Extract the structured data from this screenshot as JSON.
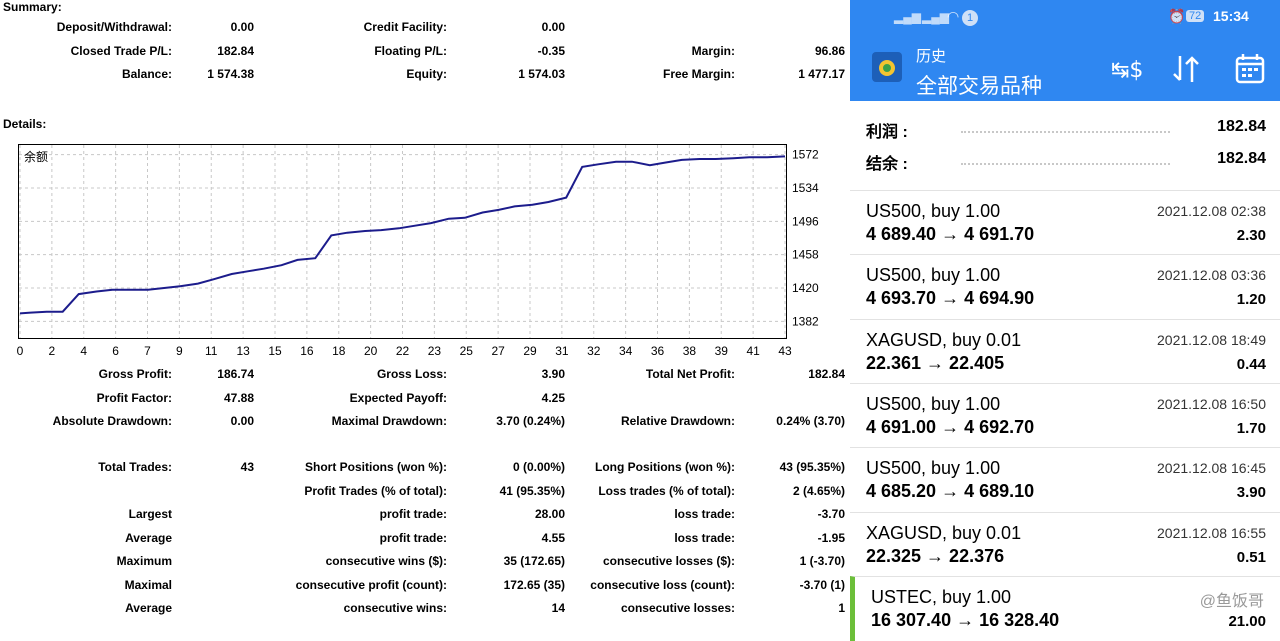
{
  "summary": {
    "title": "Summary:",
    "rows": [
      [
        {
          "l": "Deposit/Withdrawal:",
          "v": "0.00"
        },
        {
          "l": "Credit Facility:",
          "v": "0.00"
        },
        {
          "l": "",
          "v": ""
        }
      ],
      [
        {
          "l": "Closed Trade P/L:",
          "v": "182.84"
        },
        {
          "l": "Floating P/L:",
          "v": "-0.35"
        },
        {
          "l": "Margin:",
          "v": "96.86"
        }
      ],
      [
        {
          "l": "Balance:",
          "v": "1 574.38"
        },
        {
          "l": "Equity:",
          "v": "1 574.03"
        },
        {
          "l": "Free Margin:",
          "v": "1 477.17"
        }
      ]
    ]
  },
  "details": {
    "title": "Details:",
    "rows": [
      [
        {
          "l": "Gross Profit:",
          "v": "186.74"
        },
        {
          "l": "Gross Loss:",
          "v": "3.90"
        },
        {
          "l": "Total Net Profit:",
          "v": "182.84"
        }
      ],
      [
        {
          "l": "Profit Factor:",
          "v": "47.88"
        },
        {
          "l": "Expected Payoff:",
          "v": "4.25"
        },
        {
          "l": "",
          "v": ""
        }
      ],
      [
        {
          "l": "Absolute Drawdown:",
          "v": "0.00"
        },
        {
          "l": "Maximal Drawdown:",
          "v": "3.70 (0.24%)"
        },
        {
          "l": "Relative Drawdown:",
          "v": "0.24% (3.70)"
        }
      ]
    ],
    "rows2": [
      [
        {
          "l": "Total Trades:",
          "v": "43"
        },
        {
          "l": "Short Positions (won %):",
          "v": "0 (0.00%)"
        },
        {
          "l": "Long Positions (won %):",
          "v": "43 (95.35%)"
        }
      ],
      [
        {
          "l": "",
          "v": ""
        },
        {
          "l": "Profit Trades (% of total):",
          "v": "41 (95.35%)"
        },
        {
          "l": "Loss trades (% of total):",
          "v": "2 (4.65%)"
        }
      ],
      [
        {
          "l": "Largest",
          "v": ""
        },
        {
          "l": "profit trade:",
          "v": "28.00"
        },
        {
          "l": "loss trade:",
          "v": "-3.70"
        }
      ],
      [
        {
          "l": "Average",
          "v": ""
        },
        {
          "l": "profit trade:",
          "v": "4.55"
        },
        {
          "l": "loss trade:",
          "v": "-1.95"
        }
      ],
      [
        {
          "l": "Maximum",
          "v": ""
        },
        {
          "l": "consecutive wins ($):",
          "v": "35 (172.65)"
        },
        {
          "l": "consecutive losses ($):",
          "v": "1 (-3.70)"
        }
      ],
      [
        {
          "l": "Maximal",
          "v": ""
        },
        {
          "l": "consecutive profit (count):",
          "v": "172.65 (35)"
        },
        {
          "l": "consecutive loss (count):",
          "v": "-3.70 (1)"
        }
      ],
      [
        {
          "l": "Average",
          "v": ""
        },
        {
          "l": "consecutive wins:",
          "v": "14"
        },
        {
          "l": "consecutive losses:",
          "v": "1"
        }
      ]
    ]
  },
  "chart_data": {
    "type": "line",
    "title": "余额",
    "x_tick_labels": [
      "0",
      "2",
      "4",
      "6",
      "7",
      "9",
      "11",
      "13",
      "15",
      "16",
      "18",
      "20",
      "22",
      "23",
      "25",
      "27",
      "29",
      "31",
      "32",
      "34",
      "36",
      "38",
      "39",
      "41",
      "43"
    ],
    "y_ticks": [
      1382,
      1420,
      1458,
      1496,
      1534,
      1572
    ],
    "ylim": [
      1363,
      1583
    ],
    "xlim": [
      0,
      43
    ],
    "grid": true,
    "color": "#1c1c8c",
    "series": [
      {
        "values": [
          [
            0,
            1391
          ],
          [
            0.6,
            1392
          ],
          [
            1.5,
            1393
          ],
          [
            2.4,
            1393
          ],
          [
            3.3,
            1413
          ],
          [
            4.3,
            1416
          ],
          [
            5.2,
            1418
          ],
          [
            6.2,
            1418
          ],
          [
            7.2,
            1418
          ],
          [
            8.1,
            1420
          ],
          [
            9.0,
            1422
          ],
          [
            10.0,
            1425
          ],
          [
            10.9,
            1430
          ],
          [
            11.9,
            1436
          ],
          [
            12.8,
            1439
          ],
          [
            13.7,
            1442
          ],
          [
            14.7,
            1446
          ],
          [
            15.6,
            1452
          ],
          [
            16.6,
            1454
          ],
          [
            17.5,
            1480
          ],
          [
            18.4,
            1483
          ],
          [
            19.4,
            1485
          ],
          [
            20.3,
            1486
          ],
          [
            21.3,
            1488
          ],
          [
            22.2,
            1491
          ],
          [
            23.1,
            1494
          ],
          [
            24.1,
            1499
          ],
          [
            25.0,
            1500
          ],
          [
            26.0,
            1506
          ],
          [
            26.9,
            1509
          ],
          [
            27.8,
            1513
          ],
          [
            28.8,
            1515
          ],
          [
            29.7,
            1518
          ],
          [
            30.7,
            1523
          ],
          [
            31.6,
            1558
          ],
          [
            32.5,
            1561
          ],
          [
            33.5,
            1564
          ],
          [
            34.4,
            1564
          ],
          [
            35.4,
            1560
          ],
          [
            36.3,
            1563
          ],
          [
            37.2,
            1566
          ],
          [
            38.2,
            1567
          ],
          [
            39.1,
            1567
          ],
          [
            40.1,
            1568
          ],
          [
            41.0,
            1569
          ],
          [
            42.0,
            1569
          ],
          [
            43.0,
            1570
          ]
        ]
      }
    ]
  },
  "phone": {
    "status_battery": "72",
    "status_time": "15:34",
    "status_notif": "1",
    "title": "历史",
    "subtitle": "全部交易品种",
    "profit_label": "利润 :",
    "profit_value": "182.84",
    "balance_label": "结余 :",
    "balance_value": "182.84",
    "accent": "#2f87f1",
    "trades": [
      {
        "sym": "US500, buy 1.00",
        "prices": "4 689.40 → 4 691.70",
        "date": "2021.12.08 02:38",
        "profit": "2.30"
      },
      {
        "sym": "US500, buy 1.00",
        "prices": "4 693.70 → 4 694.90",
        "date": "2021.12.08 03:36",
        "profit": "1.20"
      },
      {
        "sym": "XAGUSD, buy 0.01",
        "prices": "22.361 → 22.405",
        "date": "2021.12.08 18:49",
        "profit": "0.44"
      },
      {
        "sym": "US500, buy 1.00",
        "prices": "4 691.00 → 4 692.70",
        "date": "2021.12.08 16:50",
        "profit": "1.70"
      },
      {
        "sym": "US500, buy 1.00",
        "prices": "4 685.20 → 4 689.10",
        "date": "2021.12.08 16:45",
        "profit": "3.90"
      },
      {
        "sym": "XAGUSD, buy 0.01",
        "prices": "22.325 → 22.376",
        "date": "2021.12.08 16:55",
        "profit": "0.51"
      },
      {
        "sym": "USTEC, buy 1.00",
        "prices": "16 307.40 → 16 328.40",
        "date": "",
        "profit": "21.00"
      }
    ],
    "watermark": "@鱼饭哥"
  }
}
